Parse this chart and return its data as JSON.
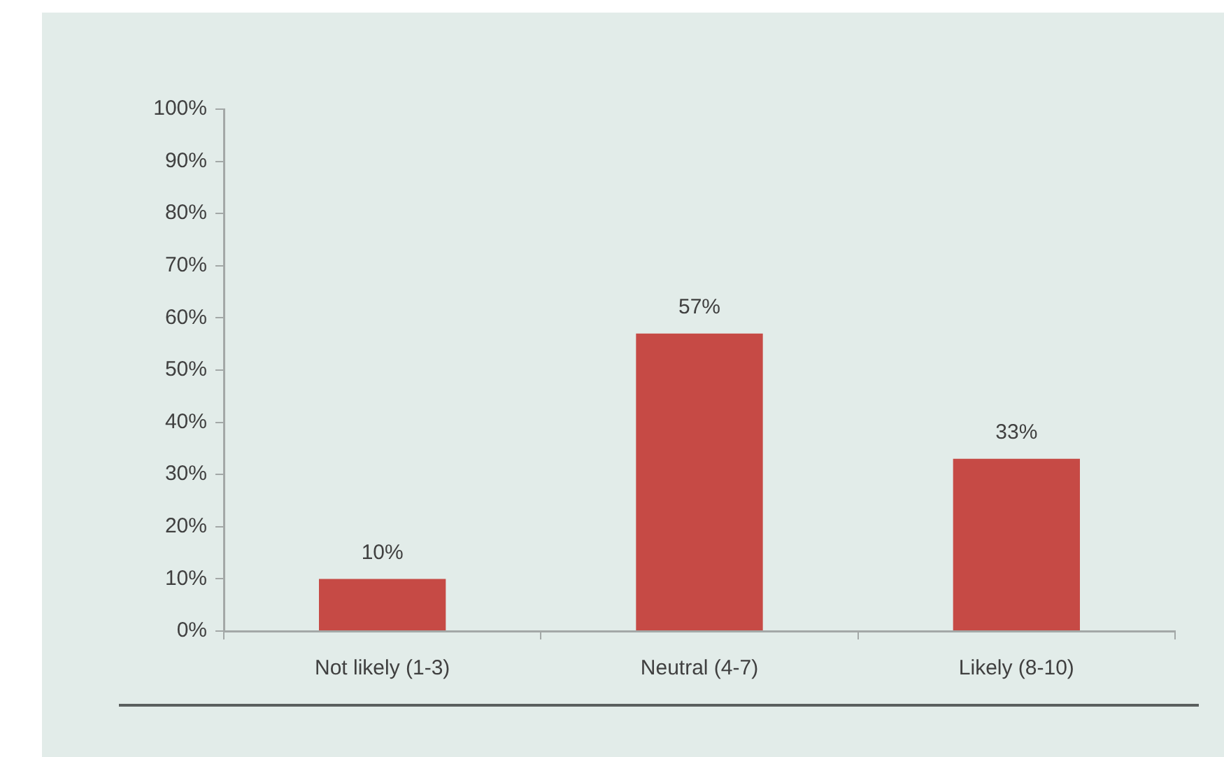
{
  "chart_data": {
    "type": "bar",
    "categories": [
      "Not likely (1-3)",
      "Neutral (4-7)",
      "Likely (8-10)"
    ],
    "values": [
      10,
      57,
      33
    ],
    "color": "#c64a45",
    "value_labels": [
      "10%",
      "57%",
      "33%"
    ],
    "ylim": [
      0,
      100
    ],
    "yticks": [
      {
        "value": 0,
        "label": "0%"
      },
      {
        "value": 10,
        "label": "10%"
      },
      {
        "value": 20,
        "label": "20%"
      },
      {
        "value": 30,
        "label": "30%"
      },
      {
        "value": 40,
        "label": "40%"
      },
      {
        "value": 50,
        "label": "50%"
      },
      {
        "value": 60,
        "label": "60%"
      },
      {
        "value": 70,
        "label": "70%"
      },
      {
        "value": 80,
        "label": "80%"
      },
      {
        "value": 90,
        "label": "90%"
      },
      {
        "value": 100,
        "label": "100%"
      }
    ]
  }
}
